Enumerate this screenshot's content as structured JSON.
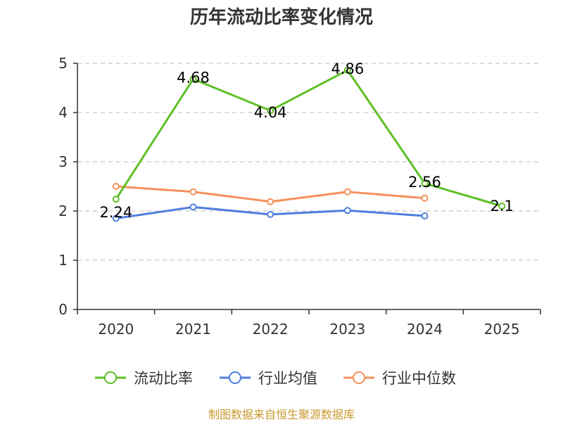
{
  "chart_data": {
    "type": "line",
    "title": "历年流动比率变化情况",
    "categories": [
      "2020",
      "2021",
      "2022",
      "2023",
      "2024",
      "2025"
    ],
    "ylim": [
      0,
      5
    ],
    "yticks": [
      "0",
      "1",
      "2",
      "3",
      "4",
      "5"
    ],
    "grid": true,
    "legend_position": "bottom-center",
    "series": [
      {
        "name": "流动比率",
        "color": "#5ec026",
        "values": [
          2.24,
          4.68,
          4.04,
          4.86,
          2.56,
          2.1
        ],
        "labels": [
          "2.24",
          "4.68",
          "4.04",
          "4.86",
          "2.56",
          "2.1"
        ]
      },
      {
        "name": "行业均值",
        "color": "#4e7fde",
        "values": [
          1.85,
          2.08,
          1.93,
          2.01,
          1.9,
          null
        ]
      },
      {
        "name": "行业中位数",
        "color": "#f5915c",
        "values": [
          2.5,
          2.39,
          2.19,
          2.39,
          2.26,
          null
        ]
      }
    ],
    "source_note": "制图数据来自恒生聚源数据库"
  }
}
